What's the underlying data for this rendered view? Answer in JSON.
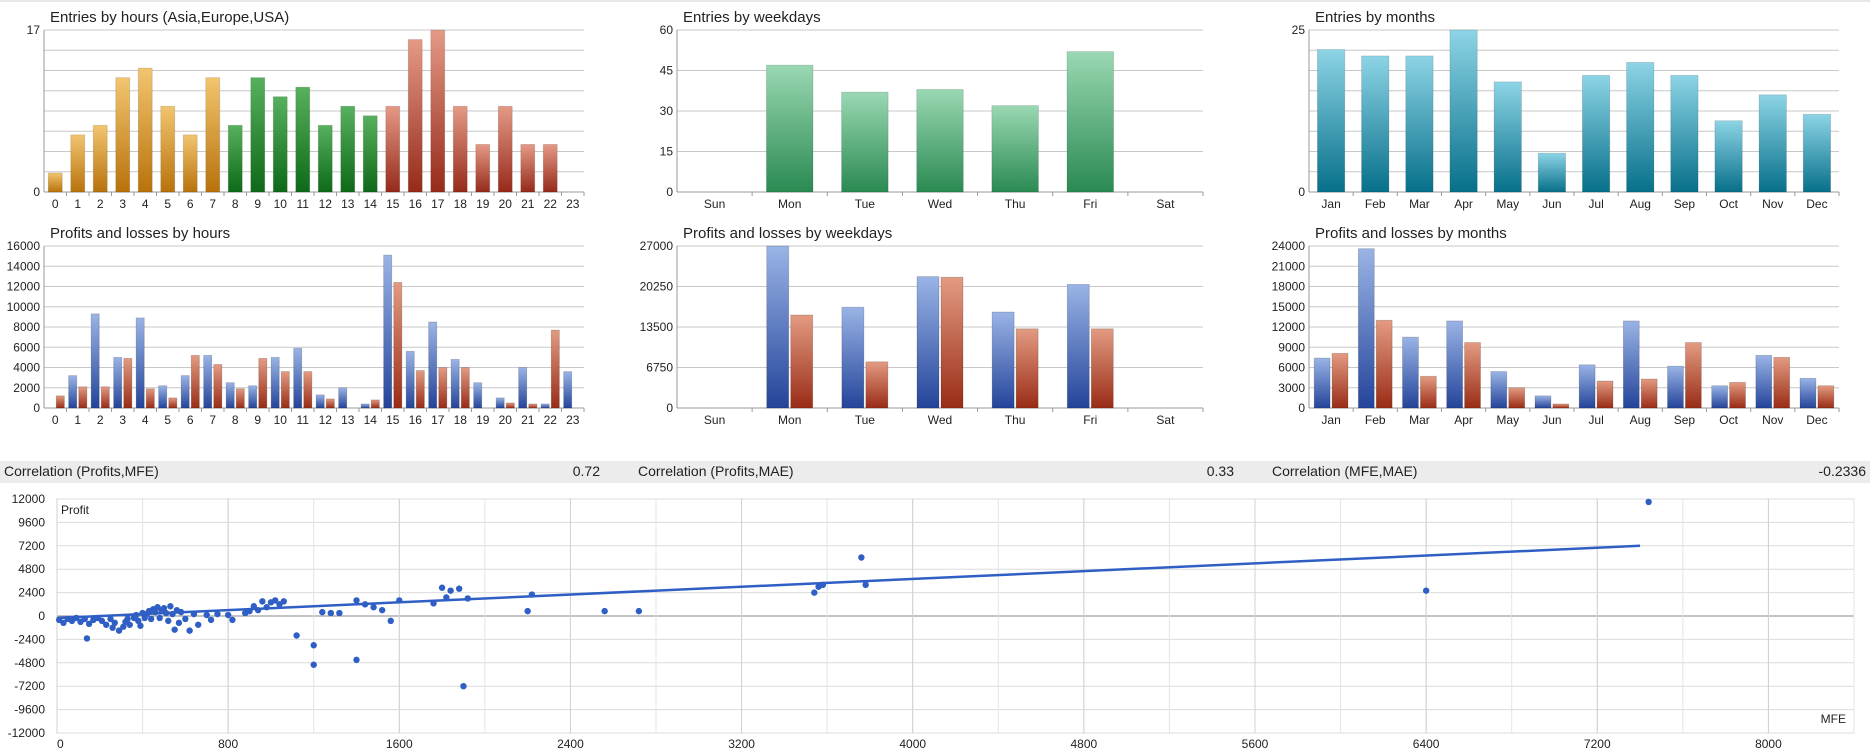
{
  "charts": [
    {
      "id": "entries-hours",
      "type": "bar",
      "title": "Entries by hours (Asia,Europe,USA)",
      "categories": [
        "0",
        "1",
        "2",
        "3",
        "4",
        "5",
        "6",
        "7",
        "8",
        "9",
        "10",
        "11",
        "12",
        "13",
        "14",
        "15",
        "16",
        "17",
        "18",
        "19",
        "20",
        "21",
        "22",
        "23"
      ],
      "ylim": [
        0,
        17
      ],
      "yticks": [
        "0",
        "17"
      ],
      "series": [
        {
          "values": [
            2,
            6,
            7,
            12,
            13,
            9,
            6,
            12,
            7,
            12,
            10,
            11,
            7,
            9,
            8,
            9,
            16,
            17,
            9,
            5,
            9,
            5,
            5,
            0
          ]
        }
      ]
    },
    {
      "id": "entries-weekdays",
      "type": "bar",
      "title": "Entries by weekdays",
      "categories": [
        "Sun",
        "Mon",
        "Tue",
        "Wed",
        "Thu",
        "Fri",
        "Sat"
      ],
      "ylim": [
        0,
        60
      ],
      "yticks": [
        "0",
        "15",
        "30",
        "45",
        "60"
      ],
      "series": [
        {
          "values": [
            0,
            47,
            37,
            38,
            32,
            52,
            0
          ]
        }
      ]
    },
    {
      "id": "entries-months",
      "type": "bar",
      "title": "Entries by months",
      "categories": [
        "Jan",
        "Feb",
        "Mar",
        "Apr",
        "May",
        "Jun",
        "Jul",
        "Aug",
        "Sep",
        "Oct",
        "Nov",
        "Dec"
      ],
      "ylim": [
        0,
        25
      ],
      "yticks": [
        "0",
        "25"
      ],
      "series": [
        {
          "values": [
            22,
            21,
            21,
            25,
            17,
            6,
            18,
            20,
            18,
            11,
            15,
            12
          ]
        }
      ]
    },
    {
      "id": "pl-hours",
      "type": "bar",
      "title": "Profits and losses by hours",
      "categories": [
        "0",
        "1",
        "2",
        "3",
        "4",
        "5",
        "6",
        "7",
        "8",
        "9",
        "10",
        "11",
        "12",
        "13",
        "14",
        "15",
        "16",
        "17",
        "18",
        "19",
        "20",
        "21",
        "22",
        "23"
      ],
      "ylim": [
        0,
        16000
      ],
      "yticks": [
        "0",
        "2000",
        "4000",
        "6000",
        "8000",
        "10000",
        "12000",
        "14000",
        "16000"
      ],
      "series": [
        {
          "values": [
            0,
            3200,
            9300,
            5000,
            8900,
            2200,
            3200,
            5200,
            2500,
            2200,
            5000,
            5900,
            1300,
            2000,
            400,
            15100,
            5600,
            8500,
            4800,
            2500,
            1000,
            4000,
            400,
            3600
          ]
        },
        {
          "values": [
            1200,
            2100,
            2100,
            4900,
            1900,
            1000,
            5200,
            4300,
            1900,
            4900,
            3600,
            3600,
            900,
            0,
            800,
            12400,
            3700,
            4000,
            4000,
            0,
            500,
            400,
            7700,
            0
          ]
        }
      ]
    },
    {
      "id": "pl-weekdays",
      "type": "bar",
      "title": "Profits and losses by weekdays",
      "categories": [
        "Sun",
        "Mon",
        "Tue",
        "Wed",
        "Thu",
        "Fri",
        "Sat"
      ],
      "ylim": [
        0,
        27000
      ],
      "yticks": [
        "0",
        "6750",
        "13500",
        "20250",
        "27000"
      ],
      "series": [
        {
          "values": [
            0,
            27000,
            16800,
            21900,
            16000,
            20600,
            0
          ]
        },
        {
          "values": [
            0,
            15500,
            7700,
            21800,
            13200,
            13200,
            0
          ]
        }
      ]
    },
    {
      "id": "pl-months",
      "type": "bar",
      "title": "Profits and losses by months",
      "categories": [
        "Jan",
        "Feb",
        "Mar",
        "Apr",
        "May",
        "Jun",
        "Jul",
        "Aug",
        "Sep",
        "Oct",
        "Nov",
        "Dec"
      ],
      "ylim": [
        0,
        24000
      ],
      "yticks": [
        "0",
        "3000",
        "6000",
        "9000",
        "12000",
        "15000",
        "18000",
        "21000",
        "24000"
      ],
      "series": [
        {
          "values": [
            7400,
            23600,
            10500,
            12900,
            5400,
            1800,
            6400,
            12900,
            6200,
            3300,
            7800,
            4400
          ]
        },
        {
          "values": [
            8100,
            13000,
            4700,
            9700,
            3000,
            600,
            4000,
            4300,
            9700,
            3800,
            7500,
            3300
          ]
        }
      ]
    }
  ],
  "correlations": [
    {
      "label": "Correlation (Profits,MFE)",
      "value": "0.72"
    },
    {
      "label": "Correlation (Profits,MAE)",
      "value": "0.33"
    },
    {
      "label": "Correlation (MFE,MAE)",
      "value": "-0.2336"
    }
  ],
  "chart_data": {
    "type": "scatter",
    "xlabel": "MFE",
    "ylabel": "Profit",
    "xlim": [
      0,
      8400
    ],
    "ylim": [
      -12000,
      12000
    ],
    "xticks": [
      "0",
      "800",
      "1600",
      "2400",
      "3200",
      "4000",
      "4800",
      "5600",
      "6400",
      "7200",
      "8000"
    ],
    "yticks": [
      "12000",
      "9600",
      "7200",
      "4800",
      "2400",
      "0",
      "-2400",
      "-4800",
      "-7200",
      "-9600",
      "-12000"
    ],
    "trendline": [
      [
        0,
        -200
      ],
      [
        7400,
        7200
      ]
    ],
    "points": [
      [
        10,
        -400
      ],
      [
        30,
        -700
      ],
      [
        50,
        -300
      ],
      [
        70,
        -500
      ],
      [
        90,
        -200
      ],
      [
        110,
        -600
      ],
      [
        130,
        -300
      ],
      [
        150,
        -800
      ],
      [
        140,
        -2300
      ],
      [
        170,
        -400
      ],
      [
        190,
        -200
      ],
      [
        210,
        -500
      ],
      [
        230,
        -900
      ],
      [
        250,
        -300
      ],
      [
        260,
        -1200
      ],
      [
        270,
        -700
      ],
      [
        290,
        -1500
      ],
      [
        310,
        -1100
      ],
      [
        320,
        -600
      ],
      [
        330,
        -300
      ],
      [
        340,
        -900
      ],
      [
        360,
        -200
      ],
      [
        370,
        100
      ],
      [
        380,
        -500
      ],
      [
        390,
        -1000
      ],
      [
        400,
        300
      ],
      [
        410,
        -200
      ],
      [
        420,
        200
      ],
      [
        430,
        500
      ],
      [
        440,
        -300
      ],
      [
        450,
        700
      ],
      [
        460,
        400
      ],
      [
        470,
        900
      ],
      [
        480,
        -200
      ],
      [
        490,
        600
      ],
      [
        500,
        800
      ],
      [
        510,
        300
      ],
      [
        520,
        -500
      ],
      [
        530,
        1000
      ],
      [
        540,
        200
      ],
      [
        550,
        -1400
      ],
      [
        560,
        600
      ],
      [
        570,
        -700
      ],
      [
        580,
        400
      ],
      [
        600,
        -300
      ],
      [
        620,
        -1500
      ],
      [
        640,
        200
      ],
      [
        660,
        -900
      ],
      [
        700,
        100
      ],
      [
        720,
        -400
      ],
      [
        750,
        200
      ],
      [
        800,
        100
      ],
      [
        820,
        -400
      ],
      [
        880,
        300
      ],
      [
        900,
        500
      ],
      [
        920,
        1000
      ],
      [
        940,
        600
      ],
      [
        960,
        1500
      ],
      [
        980,
        900
      ],
      [
        1000,
        1400
      ],
      [
        1020,
        1600
      ],
      [
        1040,
        1200
      ],
      [
        1060,
        1500
      ],
      [
        1120,
        -2000
      ],
      [
        1200,
        -3000
      ],
      [
        1200,
        -5000
      ],
      [
        1240,
        400
      ],
      [
        1280,
        300
      ],
      [
        1320,
        300
      ],
      [
        1400,
        -4500
      ],
      [
        1400,
        1600
      ],
      [
        1440,
        1200
      ],
      [
        1480,
        900
      ],
      [
        1520,
        600
      ],
      [
        1560,
        -500
      ],
      [
        1600,
        1600
      ],
      [
        1760,
        1300
      ],
      [
        1800,
        2900
      ],
      [
        1820,
        1900
      ],
      [
        1840,
        2600
      ],
      [
        1880,
        2800
      ],
      [
        1900,
        -7200
      ],
      [
        1920,
        1800
      ],
      [
        2200,
        500
      ],
      [
        2220,
        2200
      ],
      [
        2560,
        500
      ],
      [
        2720,
        500
      ],
      [
        3540,
        2400
      ],
      [
        3560,
        3000
      ],
      [
        3580,
        3200
      ],
      [
        3760,
        6000
      ],
      [
        3780,
        3200
      ],
      [
        6400,
        2600
      ],
      [
        7440,
        11700
      ]
    ]
  }
}
